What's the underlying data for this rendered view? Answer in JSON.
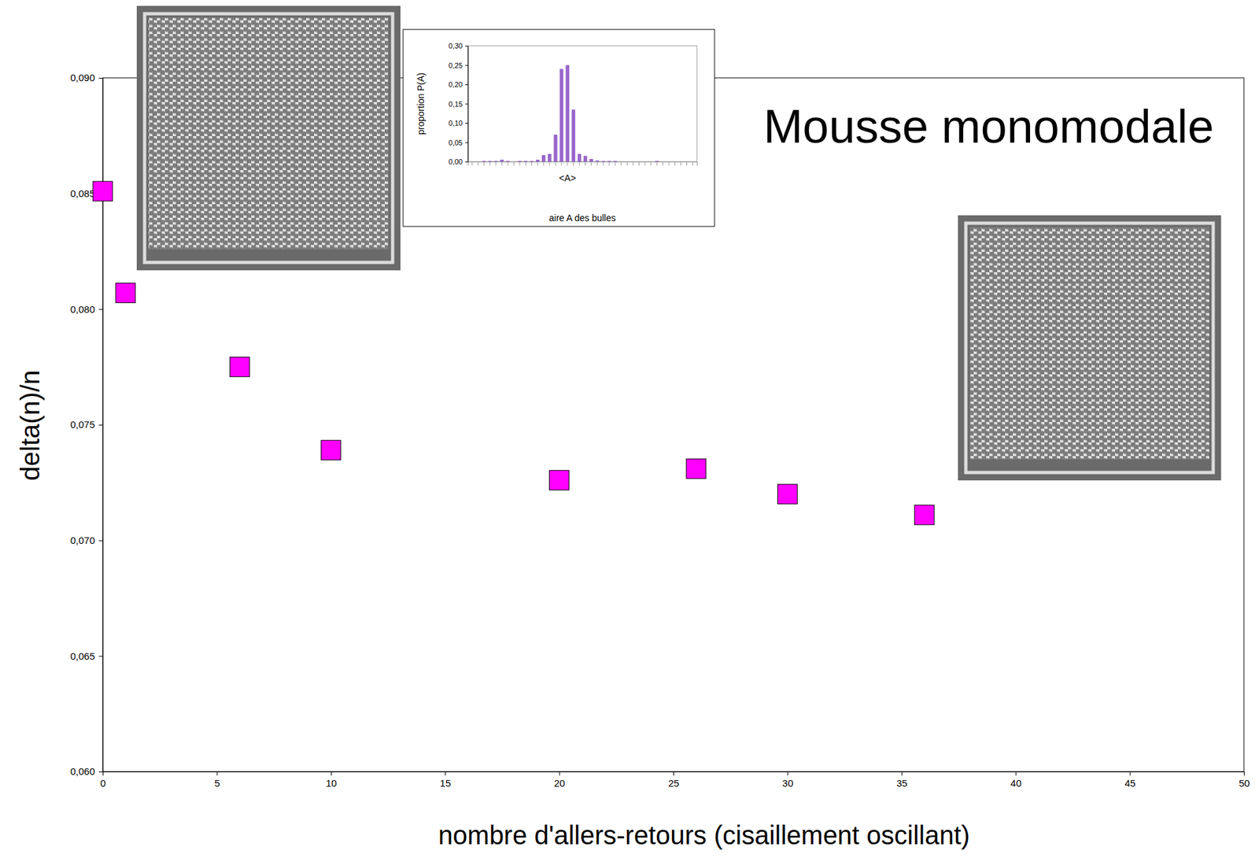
{
  "chart_data": [
    {
      "type": "scatter",
      "title": "Mousse monomodale",
      "x_label": "nombre d'allers-retours (cisaillement oscillant)",
      "y_label": "delta(n)/n",
      "x": [
        0,
        1,
        6,
        10,
        20,
        26,
        30,
        36
      ],
      "values": [
        0.0851,
        0.0807,
        0.0775,
        0.0739,
        0.0726,
        0.0731,
        0.072,
        0.0711
      ],
      "color": "#ff00ff",
      "marker": "square",
      "xlim": [
        0,
        50
      ],
      "xticks": [
        0,
        5,
        10,
        15,
        20,
        25,
        30,
        35,
        40,
        45,
        50
      ],
      "ylim": [
        0.06,
        0.09
      ],
      "yticks": [
        {
          "value": 0.06,
          "label": "0,060"
        },
        {
          "value": 0.065,
          "label": "0,065"
        },
        {
          "value": 0.07,
          "label": "0,070"
        },
        {
          "value": 0.075,
          "label": "0,075"
        },
        {
          "value": 0.08,
          "label": "0,080"
        },
        {
          "value": 0.085,
          "label": "0,085"
        },
        {
          "value": 0.09,
          "label": "0,090"
        }
      ],
      "grid": false
    },
    {
      "type": "bar",
      "x_label": "aire A des bulles",
      "y_label": "proportion P(A)",
      "categories": [
        null,
        null,
        null,
        null,
        null,
        null,
        null,
        null,
        null,
        null,
        null,
        null,
        null,
        null,
        null,
        null,
        "<A>",
        null,
        null,
        null,
        null,
        null,
        null,
        null,
        null,
        null,
        null,
        null,
        null,
        null,
        null,
        null,
        null,
        null,
        null,
        null,
        null,
        null
      ],
      "values": [
        0,
        0,
        0.002,
        0.002,
        0.002,
        0.005,
        0.002,
        0,
        0.002,
        0.002,
        0.002,
        0.005,
        0.017,
        0.02,
        0.07,
        0.24,
        0.25,
        0.135,
        0.02,
        0.015,
        0.007,
        0.003,
        0.002,
        0.002,
        0.002,
        0,
        0,
        0,
        0,
        0,
        0,
        0.002,
        0,
        0,
        0,
        0,
        0,
        0
      ],
      "color": "#9966cc",
      "ylim": [
        0,
        0.3
      ],
      "yticks": [
        {
          "value": 0,
          "label": "0,00"
        },
        {
          "value": 0.05,
          "label": "0,05"
        },
        {
          "value": 0.1,
          "label": "0,10"
        },
        {
          "value": 0.15,
          "label": "0,15"
        },
        {
          "value": 0.2,
          "label": "0,20"
        },
        {
          "value": 0.25,
          "label": "0,25"
        },
        {
          "value": 0.3,
          "label": "0,30"
        }
      ],
      "grid": false
    }
  ]
}
